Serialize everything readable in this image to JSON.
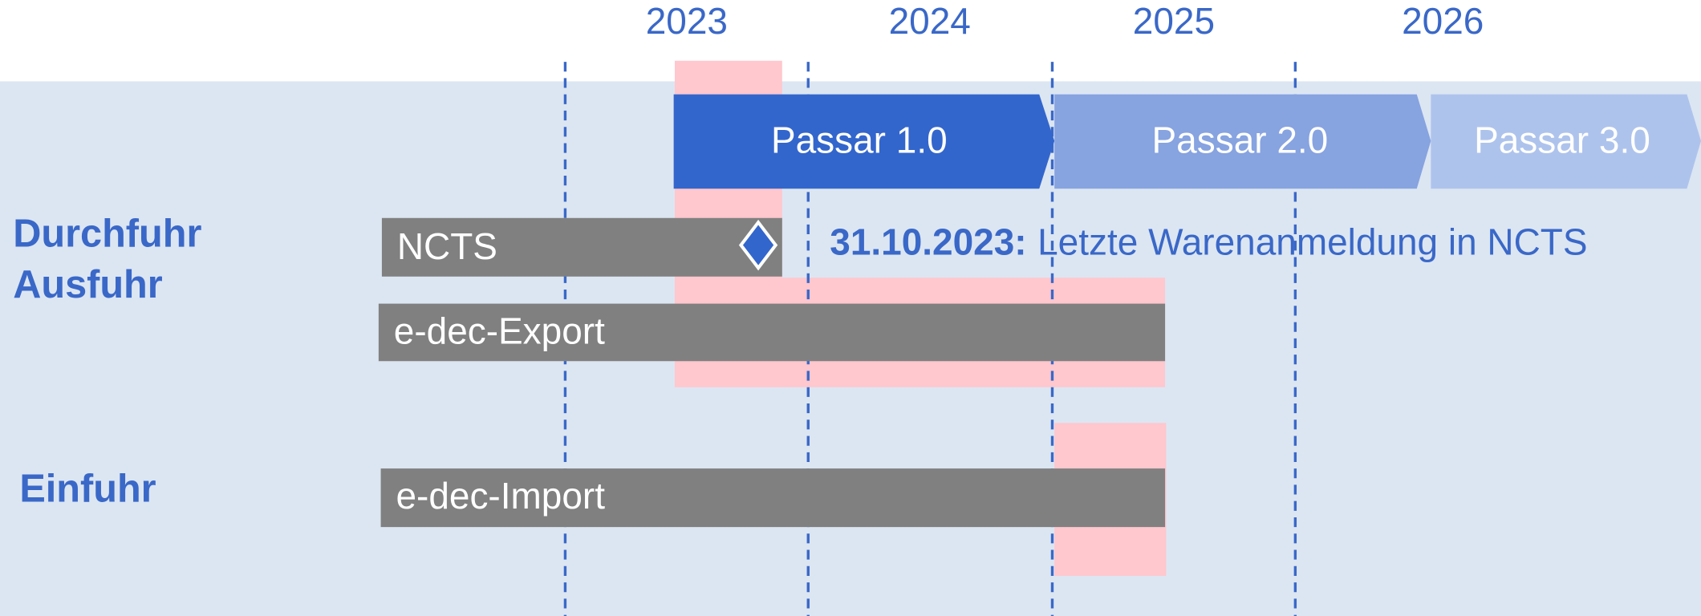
{
  "years": [
    "2023",
    "2024",
    "2025",
    "2026"
  ],
  "phases": [
    {
      "label": "Passar 1.0"
    },
    {
      "label": "Passar 2.0"
    },
    {
      "label": "Passar 3.0"
    }
  ],
  "groups": [
    {
      "lines": [
        "Durchfuhr",
        "Ausfuhr"
      ]
    },
    {
      "lines": [
        "Einfuhr"
      ]
    }
  ],
  "bars": [
    {
      "label": "NCTS"
    },
    {
      "label": "e-dec-Export"
    },
    {
      "label": "e-dec-Import"
    }
  ],
  "annotation": {
    "date": "31.10.2023:",
    "text": "Letzte Warenanmeldung in NCTS"
  }
}
